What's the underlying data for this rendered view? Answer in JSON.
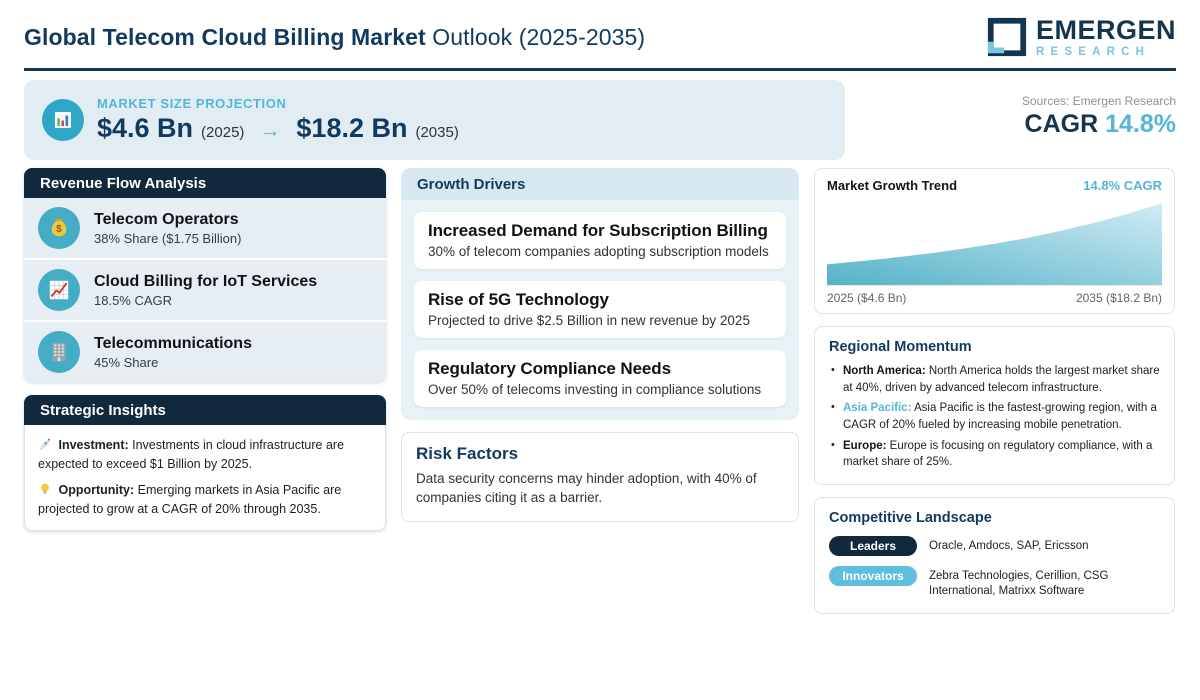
{
  "header": {
    "title_bold": "Global Telecom Cloud Billing Market",
    "title_regular": "Outlook (2025-2035)",
    "logo_line1": "EMERGEN",
    "logo_line2": "RESEARCH"
  },
  "banner": {
    "icon": "bar-chart-icon",
    "label": "MARKET SIZE PROJECTION",
    "value_start": "$4.6 Bn",
    "year_start": "(2025)",
    "arrow": "→",
    "value_end": "$18.2 Bn",
    "year_end": "(2035)",
    "sources": "Sources: Emergen Research",
    "cagr_label": "CAGR",
    "cagr_value": "14.8%"
  },
  "revenue_flow": {
    "title": "Revenue Flow Analysis",
    "items": [
      {
        "icon": "money-bag-icon",
        "title": "Telecom Operators",
        "subtitle": "38% Share ($1.75 Billion)"
      },
      {
        "icon": "line-chart-icon",
        "title": "Cloud Billing for IoT Services",
        "subtitle": "18.5% CAGR"
      },
      {
        "icon": "building-icon",
        "title": "Telecommunications",
        "subtitle": "45% Share"
      }
    ]
  },
  "strategic_insights": {
    "title": "Strategic Insights",
    "items": [
      {
        "icon": "rocket-icon",
        "lead": "Investment:",
        "text": "Investments in cloud infrastructure are expected to exceed $1 Billion by 2025."
      },
      {
        "icon": "bulb-icon",
        "lead": "Opportunity:",
        "text": "Emerging markets in Asia Pacific are projected to grow at a CAGR of 20% through 2035."
      }
    ]
  },
  "growth_drivers": {
    "title": "Growth Drivers",
    "items": [
      {
        "title": "Increased Demand for Subscription Billing",
        "subtitle": "30% of telecom companies adopting subscription models"
      },
      {
        "title": "Rise of 5G Technology",
        "subtitle": "Projected to drive $2.5 Billion in new revenue by 2025"
      },
      {
        "title": "Regulatory Compliance Needs",
        "subtitle": "Over 50% of telecoms investing in compliance solutions"
      }
    ]
  },
  "risk_factors": {
    "title": "Risk Factors",
    "text": "Data security concerns may hinder adoption, with 40% of companies citing it as a barrier."
  },
  "market_growth_trend": {
    "title": "Market Growth Trend",
    "cagr": "14.8% CAGR",
    "x_start": "2025 ($4.6 Bn)",
    "x_end": "2035 ($18.2 Bn)"
  },
  "chart_data": {
    "type": "area",
    "title": "Market Growth Trend",
    "x": [
      2025,
      2026,
      2027,
      2028,
      2029,
      2030,
      2031,
      2032,
      2033,
      2034,
      2035
    ],
    "values": [
      4.6,
      5.3,
      6.1,
      7.0,
      8.0,
      9.2,
      10.5,
      12.1,
      13.9,
      15.9,
      18.2
    ],
    "ylim": [
      0,
      18.2
    ],
    "xlabel": "",
    "ylabel": "",
    "grid": false,
    "legend": false,
    "annotations": [
      "14.8% CAGR",
      "2025 ($4.6 Bn)",
      "2035 ($18.2 Bn)"
    ],
    "area_color_start": "#55b2c8",
    "area_color_end": "#d2ecf4"
  },
  "regional_momentum": {
    "title": "Regional Momentum",
    "items": [
      {
        "lead": "North America:",
        "style": "dark",
        "text": "North America holds the largest market share at 40%, driven by advanced telecom infrastructure."
      },
      {
        "lead": "Asia Pacific:",
        "style": "accent",
        "text": "Asia Pacific is the fastest-growing region, with a CAGR of 20% fueled by increasing mobile penetration."
      },
      {
        "lead": "Europe:",
        "style": "dark",
        "text": "Europe is focusing on regulatory compliance, with a market share of 25%."
      }
    ]
  },
  "competitive_landscape": {
    "title": "Competitive Landscape",
    "rows": [
      {
        "badge": "Leaders",
        "style": "dark",
        "companies": "Oracle, Amdocs, SAP, Ericsson"
      },
      {
        "badge": "Innovators",
        "style": "accent",
        "companies": "Zebra Technologies, Cerillion, CSG International, Matrixx Software"
      }
    ]
  },
  "colors": {
    "navy": "#14354f",
    "title": "#123a5e",
    "header_bar": "#12293d",
    "accent": "#55b5d9",
    "accent_light": "#7cc5de",
    "teal": "#44acc4",
    "banner_bg": "#e2edf3",
    "row_bg": "#e6edf3",
    "section_bg": "#e8f1f5",
    "section_head_bg": "#d7e8f0",
    "card_border": "#dbe2e8"
  }
}
